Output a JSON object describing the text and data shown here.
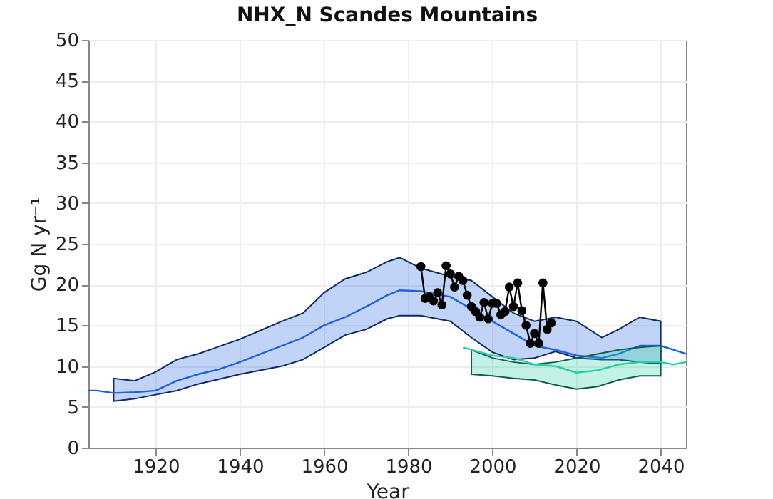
{
  "chart_data": {
    "type": "line",
    "title": "NHX_N Scandes Mountains",
    "xlabel": "Year",
    "ylabel": "Gg N yr⁻¹",
    "xlim": [
      1904,
      2046
    ],
    "xticks": [
      1920,
      1940,
      1960,
      1980,
      2000,
      2020,
      2040
    ],
    "ylim": [
      0,
      50
    ],
    "yticks": [
      0,
      5,
      10,
      15,
      20,
      25,
      30,
      35,
      40,
      45,
      50
    ],
    "grid": true,
    "series": [
      {
        "color": "#2060e0",
        "marker": "none",
        "x": [
          1904,
          1906,
          1910,
          1915,
          1920,
          1925,
          1930,
          1935,
          1940,
          1945,
          1950,
          1955,
          1960,
          1965,
          1970,
          1975,
          1978,
          1983,
          1990,
          1995,
          2000,
          2005,
          2010,
          2015,
          2020,
          2026,
          2030,
          2035,
          2040,
          2043,
          2046
        ],
        "values": [
          7.0,
          7.0,
          6.7,
          6.8,
          7.0,
          8.2,
          9.0,
          9.6,
          10.5,
          11.5,
          12.5,
          13.5,
          15.0,
          16.0,
          17.3,
          18.7,
          19.3,
          19.2,
          18.5,
          17.0,
          15.5,
          14.0,
          12.5,
          12.0,
          11.3,
          11.0,
          11.5,
          12.5,
          12.5,
          12.0,
          11.5
        ],
        "lower": [
          null,
          null,
          5.7,
          6.0,
          6.5,
          7.0,
          7.8,
          8.4,
          9.0,
          9.5,
          10.0,
          10.8,
          12.3,
          13.8,
          14.5,
          15.8,
          16.2,
          16.2,
          15.5,
          13.5,
          11.7,
          10.8,
          11.0,
          11.8,
          11.0,
          10.8,
          10.8,
          10.5,
          10.3,
          null,
          null
        ],
        "upper": [
          null,
          null,
          8.5,
          8.2,
          9.3,
          10.8,
          11.5,
          12.4,
          13.3,
          14.4,
          15.5,
          16.5,
          19.0,
          20.7,
          21.5,
          22.8,
          23.3,
          22.0,
          21.0,
          20.5,
          18.5,
          16.5,
          15.5,
          16.0,
          15.5,
          13.5,
          14.5,
          16.0,
          15.5,
          null,
          null
        ]
      },
      {
        "color": "#20d0a0",
        "marker": "none",
        "x": [
          1993,
          1995,
          2000,
          2005,
          2010,
          2015,
          2020,
          2025,
          2030,
          2035,
          2040,
          2043,
          2046
        ],
        "values": [
          12.3,
          12.0,
          11.3,
          11.0,
          10.2,
          10.0,
          9.2,
          9.5,
          10.2,
          10.5,
          10.5,
          10.2,
          10.5
        ],
        "lower": [
          null,
          9.0,
          8.8,
          8.5,
          8.3,
          7.7,
          7.2,
          7.5,
          8.3,
          8.8,
          8.8,
          null,
          null
        ],
        "upper": [
          null,
          12.0,
          11.0,
          10.5,
          10.2,
          10.5,
          11.0,
          11.5,
          12.0,
          12.3,
          12.5,
          null,
          null
        ]
      },
      {
        "color": "#000000",
        "marker": "circle",
        "x": [
          1983,
          1984,
          1985,
          1986,
          1987,
          1988,
          1989,
          1990,
          1991,
          1992,
          1993,
          1994,
          1995,
          1996,
          1997,
          1998,
          1999,
          2000,
          2001,
          2002,
          2003,
          2004,
          2005,
          2006,
          2007,
          2008,
          2009,
          2010,
          2011,
          2012,
          2013,
          2014
        ],
        "values": [
          22.2,
          18.3,
          18.5,
          18.0,
          19.0,
          17.5,
          22.3,
          21.3,
          19.7,
          21.0,
          20.5,
          18.7,
          17.3,
          16.7,
          16.0,
          17.8,
          15.8,
          17.7,
          17.7,
          16.3,
          16.7,
          19.7,
          17.3,
          20.2,
          16.8,
          15.0,
          12.8,
          14.0,
          12.8,
          20.2,
          14.5,
          15.3
        ]
      }
    ]
  }
}
